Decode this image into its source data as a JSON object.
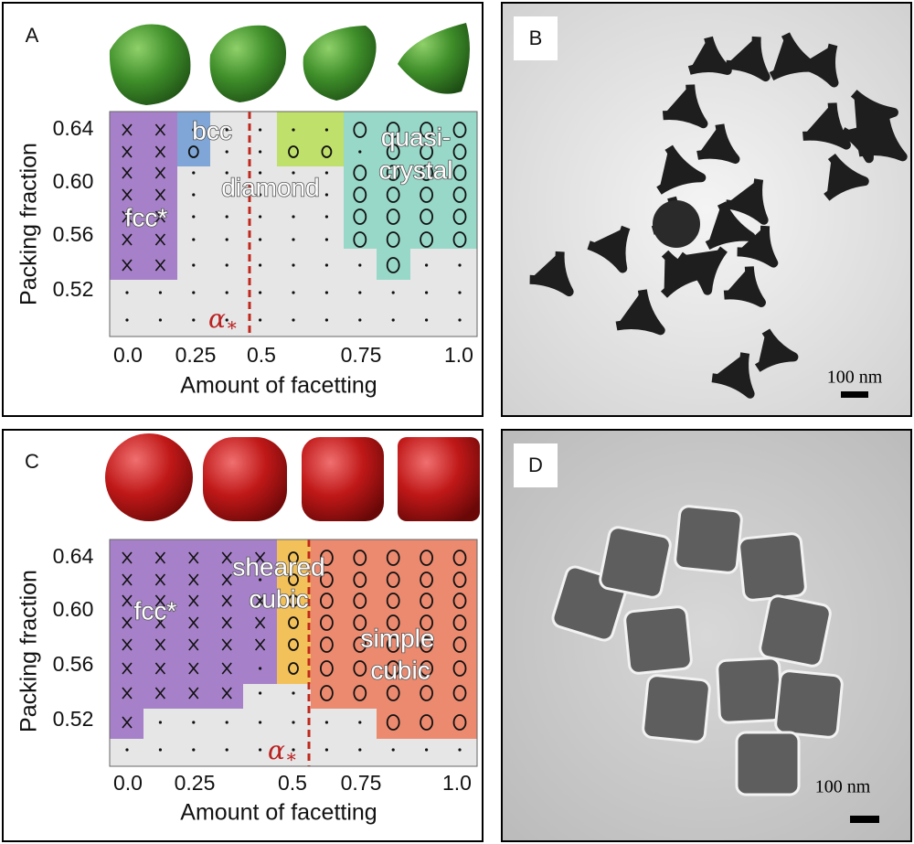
{
  "panels": [
    {
      "label": "A",
      "x_label": "Amount of facetting",
      "y_label": "Packing fraction",
      "xticks": [
        "0.0",
        "0.25",
        "0.5",
        "0.75",
        "1.0"
      ],
      "yticks": [
        "0.64",
        "0.60",
        "0.56",
        "0.52"
      ],
      "regions": [
        {
          "lines": [
            "fcc*"
          ]
        },
        {
          "lines": [
            "bcc"
          ]
        },
        {
          "lines": [
            "diamond"
          ]
        },
        {
          "lines": [
            "quasi-",
            "crystal"
          ]
        }
      ],
      "alpha": {
        "symbol": "α",
        "subscript": "∗"
      }
    },
    {
      "label": "B",
      "scale_bar": "100 nm"
    },
    {
      "label": "C",
      "x_label": "Amount of facetting",
      "y_label": "Packing fraction",
      "xticks": [
        "0.0",
        "0.25",
        "0.5",
        "0.75",
        "1.0"
      ],
      "yticks": [
        "0.64",
        "0.60",
        "0.56",
        "0.52"
      ],
      "regions": [
        {
          "lines": [
            "fcc*"
          ]
        },
        {
          "lines": [
            "sheared",
            "cubic"
          ]
        },
        {
          "lines": [
            "simple",
            "cubic"
          ]
        }
      ],
      "alpha": {
        "symbol": "α",
        "subscript": "∗"
      }
    },
    {
      "label": "D",
      "scale_bar": "100 nm"
    }
  ]
}
